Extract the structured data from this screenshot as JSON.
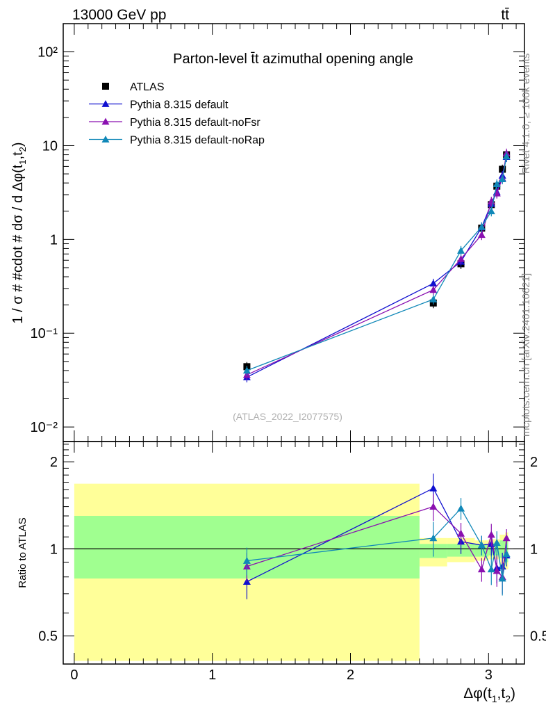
{
  "header": {
    "left": "13000 GeV pp",
    "right": "tt̄"
  },
  "side_text": {
    "top": "Rivet 4.1.0, ≥ 100k events",
    "bottom": "mcplots.cern.ch [arXiv:2401.10621]"
  },
  "watermark": "(ATLAS_2022_I2077575)",
  "colors": {
    "data": "#000000",
    "default": "#1010d0",
    "noFsr": "#8a10b0",
    "noRap": "#1088b8",
    "band_inner": "#a0ff90",
    "band_outer": "#ffff99"
  },
  "chart_data": [
    {
      "type": "line",
      "panel": "main",
      "title": "Parton-level t̄t azimuthal opening angle",
      "xlabel": "Δφ(t1,t2)",
      "ylabel": "1 / σ # #cdot # dσ / d Δφ(t1,t2)",
      "yscale": "log",
      "xlim": [
        -0.08,
        3.26
      ],
      "ylim": [
        0.007,
        200
      ],
      "x_ticks": [
        "0",
        "1",
        "2",
        "3"
      ],
      "y_ticks": [
        "10⁻²",
        "10⁻¹",
        "1",
        "10",
        "10²"
      ],
      "legend_position": "top-left",
      "series": [
        {
          "name": "ATLAS",
          "marker": "square",
          "x": [
            1.25,
            2.6,
            2.8,
            2.95,
            3.02,
            3.06,
            3.1,
            3.13
          ],
          "y": [
            0.044,
            0.21,
            0.55,
            1.32,
            2.35,
            3.7,
            5.6,
            8.0
          ],
          "xerr": [
            1.25,
            0.1,
            0.1,
            0.05,
            0.02,
            0.02,
            0.02,
            0.012
          ]
        },
        {
          "name": "Pythia 8.315 default",
          "marker": "triangle",
          "x": [
            1.25,
            2.6,
            2.8,
            2.95,
            3.02,
            3.06,
            3.1,
            3.13
          ],
          "y": [
            0.034,
            0.34,
            0.58,
            1.35,
            2.4,
            3.2,
            4.8,
            7.6
          ]
        },
        {
          "name": "Pythia 8.315 default-noFsr",
          "marker": "triangle",
          "x": [
            1.25,
            2.6,
            2.8,
            2.95,
            3.02,
            3.06,
            3.1,
            3.13
          ],
          "y": [
            0.036,
            0.29,
            0.62,
            1.12,
            2.55,
            3.1,
            4.5,
            8.3
          ]
        },
        {
          "name": "Pythia 8.315 default-noRap",
          "marker": "triangle",
          "x": [
            1.25,
            2.6,
            2.8,
            2.95,
            3.02,
            3.06,
            3.1,
            3.13
          ],
          "y": [
            0.04,
            0.23,
            0.76,
            1.36,
            2.0,
            3.9,
            4.4,
            7.7
          ]
        }
      ]
    },
    {
      "type": "line",
      "panel": "ratio",
      "ylabel": "Ratio to ATLAS",
      "yscale": "log",
      "ylim": [
        0.4,
        2.35
      ],
      "y_ticks": [
        "0.5",
        "1",
        "2"
      ],
      "reference_line": 1,
      "bands": {
        "edges": [
          0,
          2.5,
          2.7,
          2.9,
          3.0,
          3.04,
          3.08,
          3.12,
          3.142
        ],
        "inner_low": [
          0.79,
          0.93,
          0.94,
          0.94,
          0.95,
          0.95,
          0.93,
          0.9
        ],
        "inner_high": [
          1.3,
          1.04,
          1.04,
          1.04,
          1.05,
          1.05,
          1.07,
          1.1
        ],
        "outer_low": [
          0.41,
          0.87,
          0.9,
          0.91,
          0.92,
          0.92,
          0.88,
          0.85
        ],
        "outer_high": [
          1.68,
          1.09,
          1.09,
          1.07,
          1.08,
          1.08,
          1.12,
          1.14
        ]
      },
      "series": [
        {
          "name": "Pythia 8.315 default",
          "x": [
            1.25,
            2.6,
            2.8,
            2.95,
            3.02,
            3.06,
            3.1,
            3.13
          ],
          "y": [
            0.77,
            1.62,
            1.06,
            1.03,
            1.04,
            0.86,
            0.87,
            0.95
          ],
          "err": [
            0.1,
            0.2,
            0.1,
            0.08,
            0.1,
            0.1,
            0.1,
            0.08
          ]
        },
        {
          "name": "Pythia 8.315 default-noFsr",
          "x": [
            1.25,
            2.6,
            2.8,
            2.95,
            3.02,
            3.06,
            3.1,
            3.13
          ],
          "y": [
            0.87,
            1.4,
            1.13,
            0.85,
            1.12,
            0.84,
            0.8,
            1.09
          ],
          "err": [
            0.1,
            0.15,
            0.1,
            0.08,
            0.1,
            0.1,
            0.1,
            0.08
          ]
        },
        {
          "name": "Pythia 8.315 default-noRap",
          "x": [
            1.25,
            2.6,
            2.8,
            2.95,
            3.02,
            3.06,
            3.1,
            3.13
          ],
          "y": [
            0.91,
            1.09,
            1.38,
            1.03,
            0.85,
            1.05,
            0.79,
            0.96
          ],
          "err": [
            0.1,
            0.15,
            0.12,
            0.08,
            0.1,
            0.1,
            0.1,
            0.08
          ]
        }
      ]
    }
  ]
}
